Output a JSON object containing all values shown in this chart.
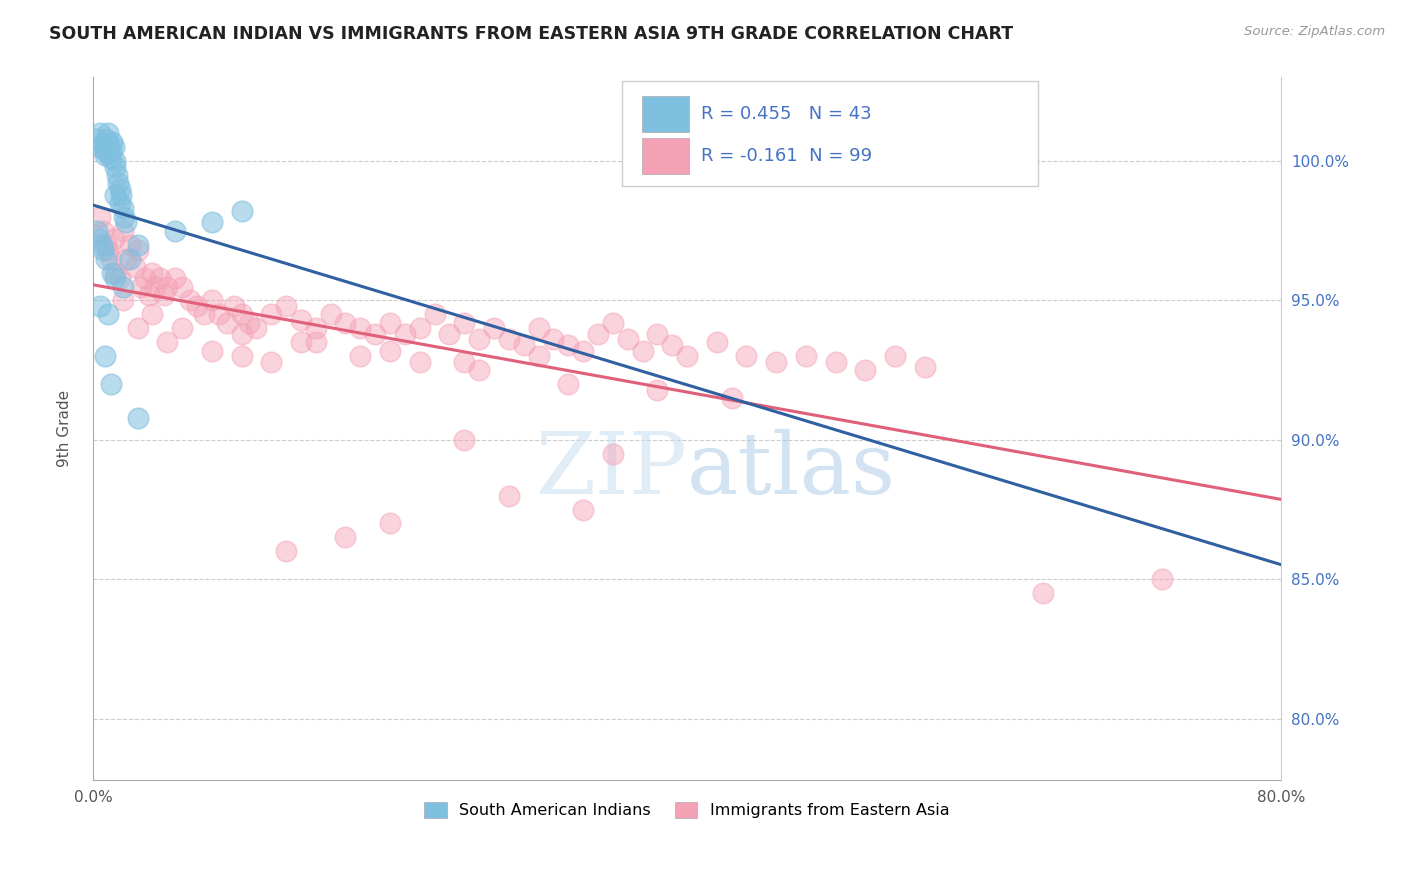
{
  "title": "SOUTH AMERICAN INDIAN VS IMMIGRANTS FROM EASTERN ASIA 9TH GRADE CORRELATION CHART",
  "source": "Source: ZipAtlas.com",
  "ylabel": "9th Grade",
  "legend1_label": "South American Indians",
  "legend2_label": "Immigrants from Eastern Asia",
  "R1": 0.455,
  "N1": 43,
  "R2": -0.161,
  "N2": 99,
  "ytick_labels": [
    "80.0%",
    "85.0%",
    "90.0%",
    "95.0%",
    "100.0%"
  ],
  "ytick_values": [
    0.8,
    0.85,
    0.9,
    0.95,
    1.0
  ],
  "xmin": 0.0,
  "xmax": 0.8,
  "ymin": 0.778,
  "ymax": 1.03,
  "color_blue": "#7fbfdf",
  "color_pink": "#f4a0b5",
  "line_blue": "#3060a0",
  "line_pink": "#e0607a",
  "blue_x": [
    0.003,
    0.005,
    0.005,
    0.007,
    0.008,
    0.008,
    0.009,
    0.01,
    0.01,
    0.011,
    0.012,
    0.012,
    0.013,
    0.014,
    0.015,
    0.015,
    0.016,
    0.017,
    0.018,
    0.018,
    0.019,
    0.02,
    0.021,
    0.022,
    0.003,
    0.004,
    0.006,
    0.007,
    0.009,
    0.013,
    0.015,
    0.02,
    0.005,
    0.01,
    0.025,
    0.03,
    0.055,
    0.08,
    0.1,
    0.015,
    0.008,
    0.012,
    0.03
  ],
  "blue_y": [
    1.008,
    1.01,
    1.005,
    1.006,
    1.004,
    1.002,
    1.008,
    1.01,
    1.003,
    1.006,
    1.001,
    1.004,
    1.007,
    1.005,
    0.998,
    1.0,
    0.995,
    0.992,
    0.99,
    0.985,
    0.988,
    0.983,
    0.98,
    0.978,
    0.975,
    0.972,
    0.97,
    0.968,
    0.965,
    0.96,
    0.958,
    0.955,
    0.948,
    0.945,
    0.965,
    0.97,
    0.975,
    0.978,
    0.982,
    0.988,
    0.93,
    0.92,
    0.908
  ],
  "pink_x": [
    0.005,
    0.007,
    0.009,
    0.01,
    0.012,
    0.014,
    0.015,
    0.018,
    0.02,
    0.022,
    0.025,
    0.028,
    0.03,
    0.032,
    0.035,
    0.038,
    0.04,
    0.042,
    0.045,
    0.048,
    0.05,
    0.055,
    0.06,
    0.065,
    0.07,
    0.075,
    0.08,
    0.085,
    0.09,
    0.095,
    0.1,
    0.105,
    0.11,
    0.12,
    0.13,
    0.14,
    0.15,
    0.16,
    0.17,
    0.18,
    0.19,
    0.2,
    0.21,
    0.22,
    0.23,
    0.24,
    0.25,
    0.26,
    0.27,
    0.28,
    0.29,
    0.3,
    0.31,
    0.32,
    0.33,
    0.34,
    0.35,
    0.36,
    0.37,
    0.38,
    0.39,
    0.4,
    0.42,
    0.44,
    0.46,
    0.48,
    0.5,
    0.52,
    0.54,
    0.56,
    0.03,
    0.05,
    0.08,
    0.1,
    0.12,
    0.15,
    0.2,
    0.25,
    0.3,
    0.02,
    0.04,
    0.06,
    0.1,
    0.14,
    0.18,
    0.22,
    0.26,
    0.32,
    0.38,
    0.43,
    0.25,
    0.35,
    0.28,
    0.33,
    0.2,
    0.17,
    0.13,
    0.72,
    0.64
  ],
  "pink_y": [
    0.98,
    0.975,
    0.97,
    0.968,
    0.965,
    0.972,
    0.96,
    0.958,
    0.975,
    0.965,
    0.97,
    0.962,
    0.968,
    0.955,
    0.958,
    0.952,
    0.96,
    0.955,
    0.958,
    0.952,
    0.955,
    0.958,
    0.955,
    0.95,
    0.948,
    0.945,
    0.95,
    0.945,
    0.942,
    0.948,
    0.945,
    0.942,
    0.94,
    0.945,
    0.948,
    0.943,
    0.94,
    0.945,
    0.942,
    0.94,
    0.938,
    0.942,
    0.938,
    0.94,
    0.945,
    0.938,
    0.942,
    0.936,
    0.94,
    0.936,
    0.934,
    0.94,
    0.936,
    0.934,
    0.932,
    0.938,
    0.942,
    0.936,
    0.932,
    0.938,
    0.934,
    0.93,
    0.935,
    0.93,
    0.928,
    0.93,
    0.928,
    0.925,
    0.93,
    0.926,
    0.94,
    0.935,
    0.932,
    0.93,
    0.928,
    0.935,
    0.932,
    0.928,
    0.93,
    0.95,
    0.945,
    0.94,
    0.938,
    0.935,
    0.93,
    0.928,
    0.925,
    0.92,
    0.918,
    0.915,
    0.9,
    0.895,
    0.88,
    0.875,
    0.87,
    0.865,
    0.86,
    0.85,
    0.845
  ]
}
